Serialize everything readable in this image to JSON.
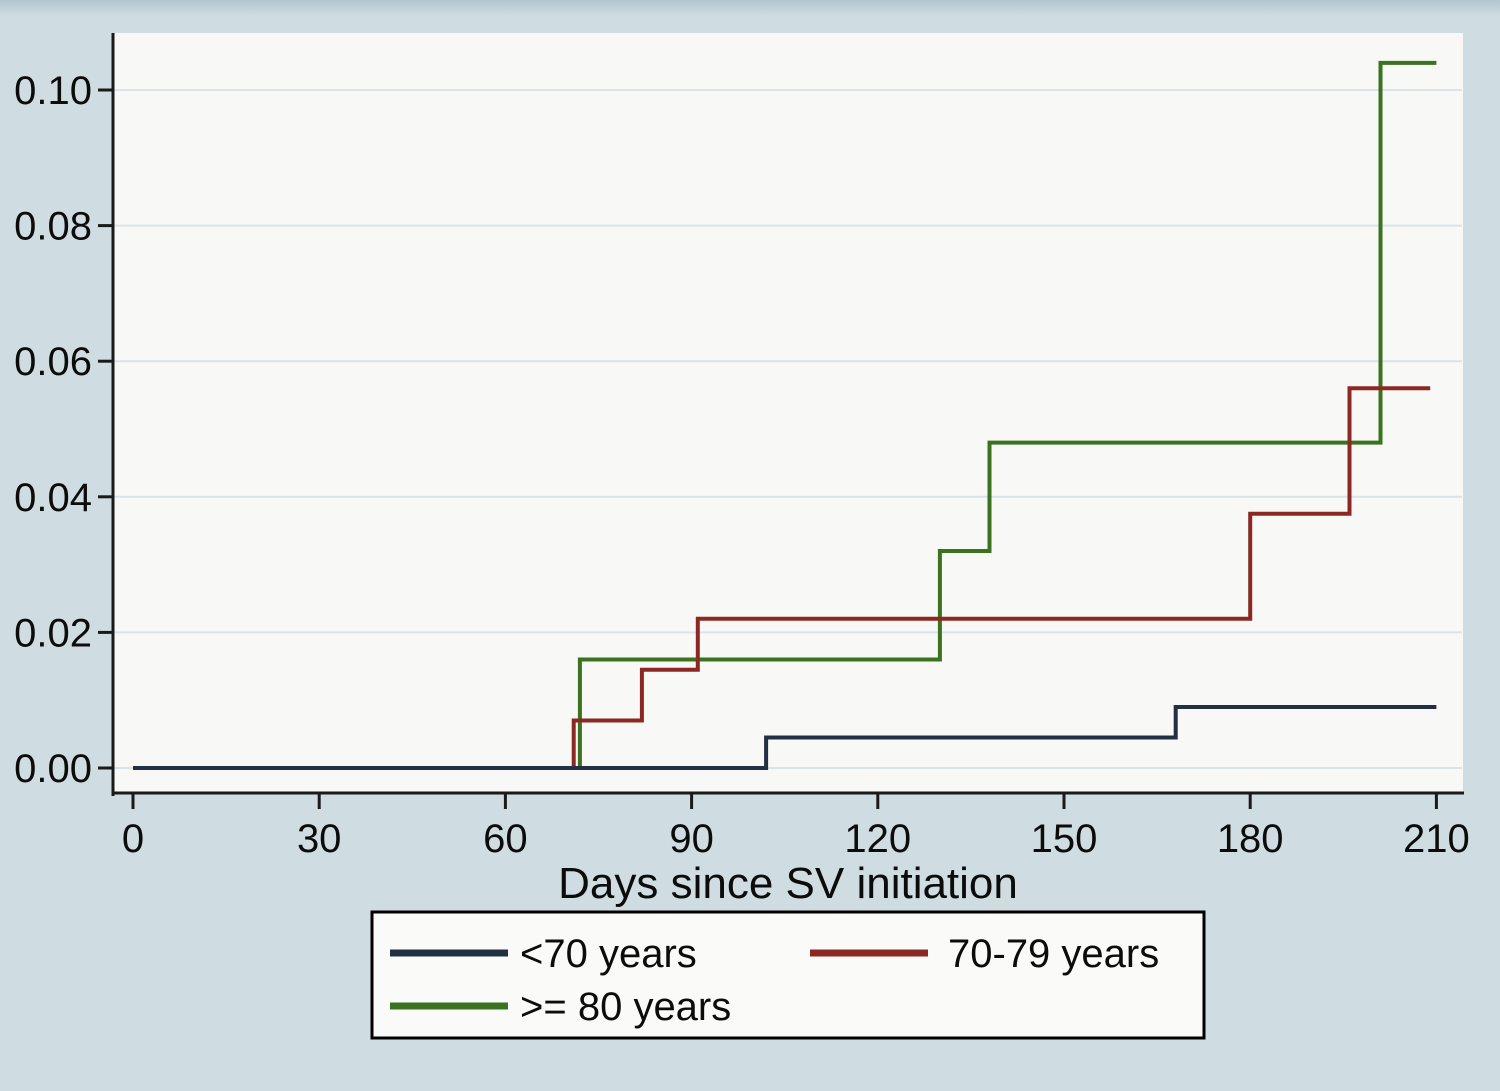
{
  "figure": {
    "outer_background": "#cfdde2",
    "plot_background": "#f8f9f7",
    "gridline_color": "#dce3e8",
    "axis_color": "#1a1a1a"
  },
  "chart_data": {
    "type": "line",
    "subtype": "step",
    "title": "",
    "xlabel": "Days since SV initiation",
    "ylabel": "",
    "xlim": [
      0,
      212
    ],
    "ylim": [
      0,
      0.105
    ],
    "grid": true,
    "legend_position": "bottom",
    "x_ticks": [
      {
        "value": 0,
        "label": "0"
      },
      {
        "value": 30,
        "label": "30"
      },
      {
        "value": 60,
        "label": "60"
      },
      {
        "value": 90,
        "label": "90"
      },
      {
        "value": 120,
        "label": "120"
      },
      {
        "value": 150,
        "label": "150"
      },
      {
        "value": 180,
        "label": "180"
      },
      {
        "value": 210,
        "label": "210"
      }
    ],
    "y_ticks": [
      {
        "value": 0.0,
        "label": "0.00"
      },
      {
        "value": 0.02,
        "label": "0.02"
      },
      {
        "value": 0.04,
        "label": "0.04"
      },
      {
        "value": 0.06,
        "label": "0.06"
      },
      {
        "value": 0.08,
        "label": "0.08"
      },
      {
        "value": 0.1,
        "label": "0.10"
      }
    ],
    "series": [
      {
        "name": ">= 80 years",
        "color": "#3a721f",
        "legend_slot": 2,
        "points": [
          [
            0,
            0
          ],
          [
            72,
            0
          ],
          [
            72,
            0.016
          ],
          [
            130,
            0.016
          ],
          [
            130,
            0.032
          ],
          [
            138,
            0.032
          ],
          [
            138,
            0.048
          ],
          [
            201,
            0.048
          ],
          [
            201,
            0.104
          ],
          [
            210,
            0.104
          ]
        ]
      },
      {
        "name": "70-79 years",
        "color": "#8c2823",
        "legend_slot": 1,
        "points": [
          [
            0,
            0
          ],
          [
            71,
            0
          ],
          [
            71,
            0.007
          ],
          [
            82,
            0.007
          ],
          [
            82,
            0.0145
          ],
          [
            91,
            0.0145
          ],
          [
            91,
            0.022
          ],
          [
            180,
            0.022
          ],
          [
            180,
            0.0375
          ],
          [
            196,
            0.0375
          ],
          [
            196,
            0.056
          ],
          [
            209,
            0.056
          ]
        ]
      },
      {
        "name": "<70 years",
        "color": "#232f42",
        "legend_slot": 0,
        "points": [
          [
            0,
            0
          ],
          [
            102,
            0
          ],
          [
            102,
            0.0045
          ],
          [
            168,
            0.0045
          ],
          [
            168,
            0.009
          ],
          [
            210,
            0.009
          ]
        ]
      }
    ]
  }
}
